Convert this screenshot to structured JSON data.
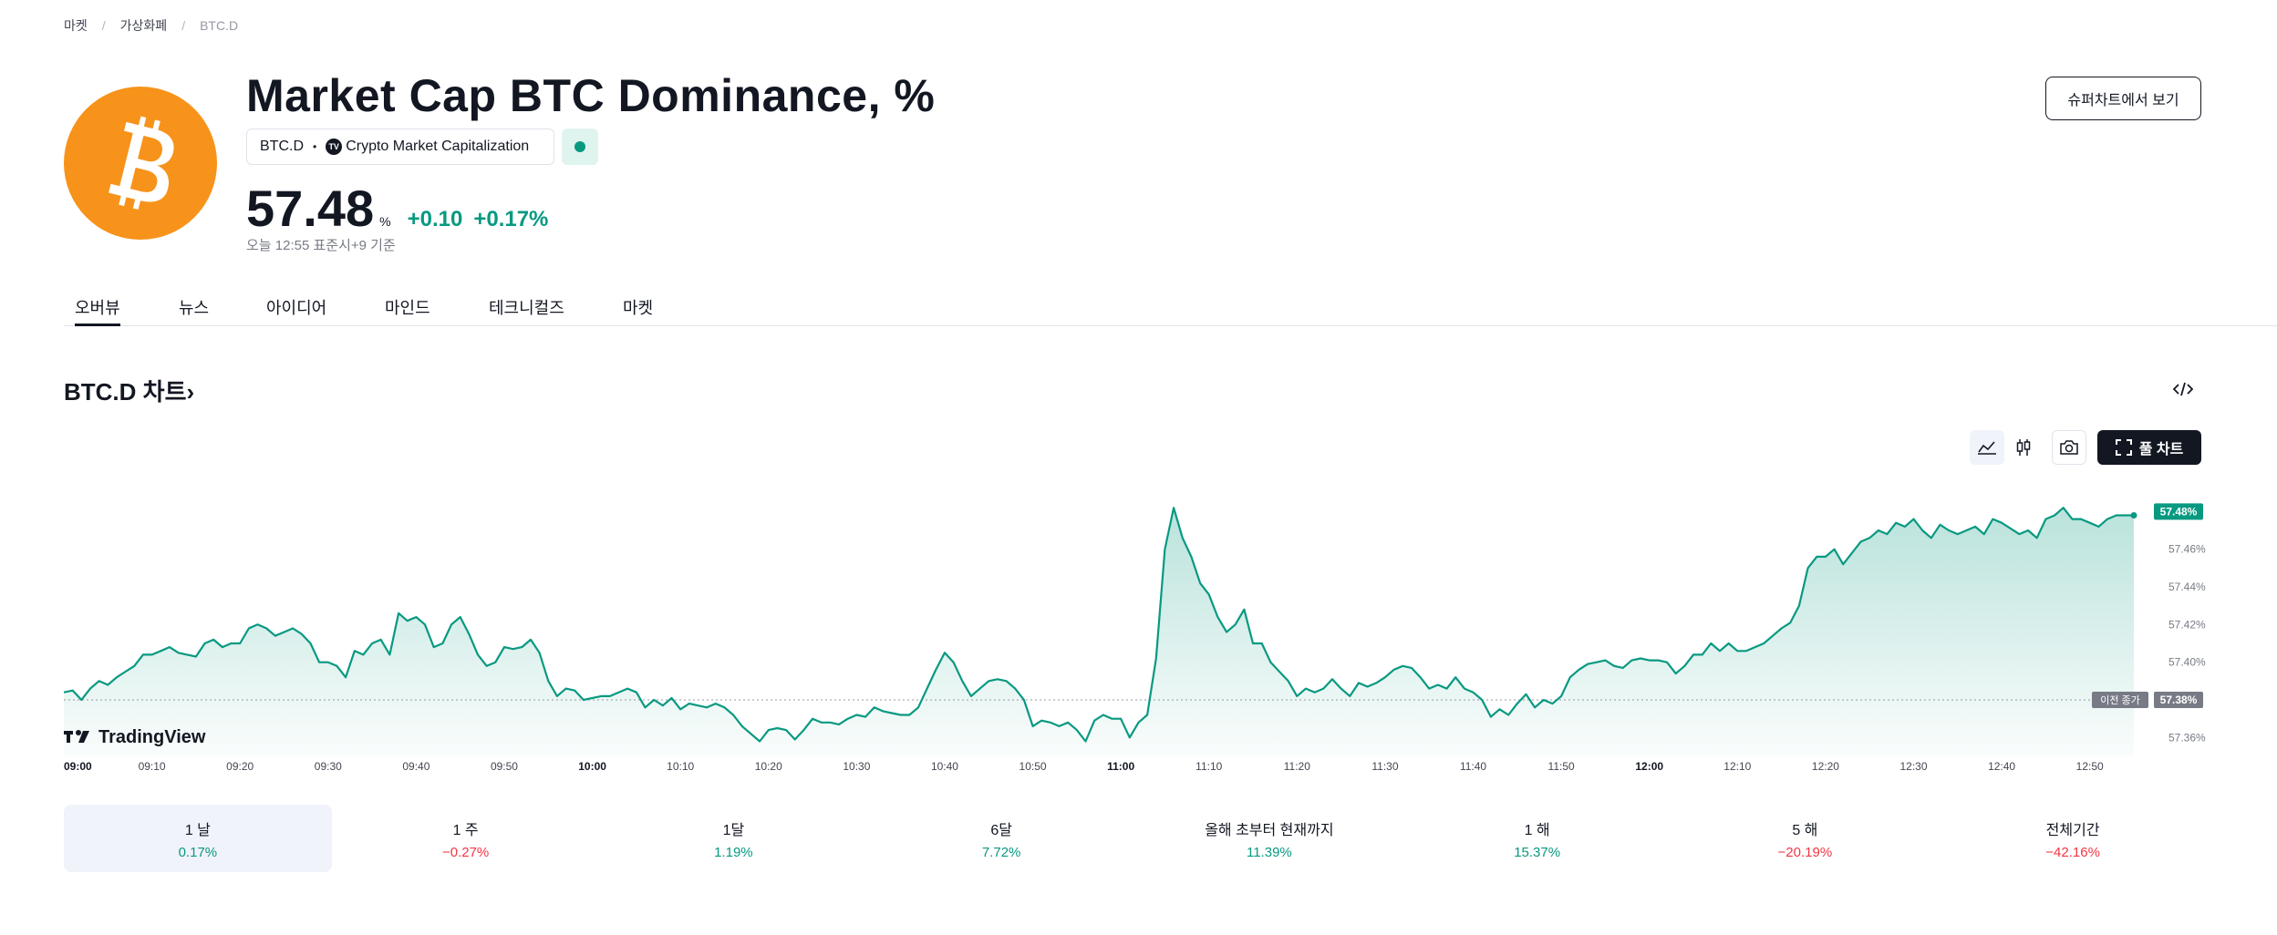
{
  "breadcrumb": {
    "items": [
      "마켓",
      "가상화폐"
    ],
    "current": "BTC.D"
  },
  "header": {
    "title": "Market Cap BTC Dominance, %",
    "symbol": "BTC.D",
    "dot": "•",
    "tv_badge": "TV",
    "source": "Crypto Market Capitalization",
    "price": "57.48",
    "unit": "%",
    "change": "+0.10",
    "change_pct": "+0.17%",
    "asof": "오늘 12:55 표준시+9 기준",
    "supercharts_label": "슈퍼차트에서 보기"
  },
  "tabs": [
    "오버뷰",
    "뉴스",
    "아이디어",
    "마인드",
    "테크니컬즈",
    "마켓"
  ],
  "section": {
    "title": "BTC.D 차트",
    "chevron": "›"
  },
  "toolbar": {
    "full_chart_label": "풀 차트"
  },
  "colors": {
    "accent": "#089981",
    "negative": "#f23645",
    "text": "#131722",
    "logo": "#f7931a"
  },
  "chart_data": {
    "type": "area",
    "x_ticks": [
      "09:00",
      "09:10",
      "09:20",
      "09:30",
      "09:40",
      "09:50",
      "10:00",
      "10:10",
      "10:20",
      "10:30",
      "10:40",
      "10:50",
      "11:00",
      "11:10",
      "11:20",
      "11:30",
      "11:40",
      "11:50",
      "12:00",
      "12:10",
      "12:20",
      "12:30",
      "12:40",
      "12:50"
    ],
    "bold_ticks": [
      "09:00",
      "10:00",
      "11:00",
      "12:00"
    ],
    "y_ticks": [
      "57.46%",
      "57.44%",
      "57.42%",
      "57.40%",
      "57.36%"
    ],
    "y_tick_values": [
      57.46,
      57.44,
      57.42,
      57.4,
      57.36
    ],
    "ylim": [
      57.35,
      57.5
    ],
    "xlim_minutes": [
      0,
      235
    ],
    "last_value": 57.48,
    "last_label": "57.48%",
    "prev_close": 57.38,
    "prev_close_label": "이전 종가",
    "prev_close_value_label": "57.38%",
    "watermark": "TradingView",
    "series": [
      {
        "name": "BTC.D",
        "points": [
          [
            0,
            57.384
          ],
          [
            1,
            57.385
          ],
          [
            2,
            57.38
          ],
          [
            3,
            57.386
          ],
          [
            4,
            57.39
          ],
          [
            5,
            57.388
          ],
          [
            6,
            57.392
          ],
          [
            7,
            57.395
          ],
          [
            8,
            57.398
          ],
          [
            9,
            57.404
          ],
          [
            10,
            57.404
          ],
          [
            11,
            57.406
          ],
          [
            12,
            57.408
          ],
          [
            13,
            57.405
          ],
          [
            14,
            57.404
          ],
          [
            15,
            57.403
          ],
          [
            16,
            57.41
          ],
          [
            17,
            57.412
          ],
          [
            18,
            57.408
          ],
          [
            19,
            57.41
          ],
          [
            20,
            57.41
          ],
          [
            21,
            57.418
          ],
          [
            22,
            57.42
          ],
          [
            23,
            57.418
          ],
          [
            24,
            57.414
          ],
          [
            25,
            57.416
          ],
          [
            26,
            57.418
          ],
          [
            27,
            57.415
          ],
          [
            28,
            57.41
          ],
          [
            29,
            57.4
          ],
          [
            30,
            57.4
          ],
          [
            31,
            57.398
          ],
          [
            32,
            57.392
          ],
          [
            33,
            57.406
          ],
          [
            34,
            57.404
          ],
          [
            35,
            57.41
          ],
          [
            36,
            57.412
          ],
          [
            37,
            57.404
          ],
          [
            38,
            57.426
          ],
          [
            39,
            57.422
          ],
          [
            40,
            57.424
          ],
          [
            41,
            57.42
          ],
          [
            42,
            57.408
          ],
          [
            43,
            57.41
          ],
          [
            44,
            57.42
          ],
          [
            45,
            57.424
          ],
          [
            46,
            57.415
          ],
          [
            47,
            57.404
          ],
          [
            48,
            57.398
          ],
          [
            49,
            57.4
          ],
          [
            50,
            57.408
          ],
          [
            51,
            57.407
          ],
          [
            52,
            57.408
          ],
          [
            53,
            57.412
          ],
          [
            54,
            57.405
          ],
          [
            55,
            57.39
          ],
          [
            56,
            57.382
          ],
          [
            57,
            57.386
          ],
          [
            58,
            57.385
          ],
          [
            59,
            57.38
          ],
          [
            60,
            57.381
          ],
          [
            61,
            57.382
          ],
          [
            62,
            57.382
          ],
          [
            63,
            57.384
          ],
          [
            64,
            57.386
          ],
          [
            65,
            57.384
          ],
          [
            66,
            57.376
          ],
          [
            67,
            57.38
          ],
          [
            68,
            57.377
          ],
          [
            69,
            57.381
          ],
          [
            70,
            57.375
          ],
          [
            71,
            57.378
          ],
          [
            72,
            57.377
          ],
          [
            73,
            57.376
          ],
          [
            74,
            57.378
          ],
          [
            75,
            57.376
          ],
          [
            76,
            57.372
          ],
          [
            77,
            57.366
          ],
          [
            78,
            57.362
          ],
          [
            79,
            57.358
          ],
          [
            80,
            57.364
          ],
          [
            81,
            57.365
          ],
          [
            82,
            57.364
          ],
          [
            83,
            57.359
          ],
          [
            84,
            57.364
          ],
          [
            85,
            57.37
          ],
          [
            86,
            57.368
          ],
          [
            87,
            57.368
          ],
          [
            88,
            57.367
          ],
          [
            89,
            57.37
          ],
          [
            90,
            57.372
          ],
          [
            91,
            57.371
          ],
          [
            92,
            57.376
          ],
          [
            93,
            57.374
          ],
          [
            94,
            57.373
          ],
          [
            95,
            57.372
          ],
          [
            96,
            57.372
          ],
          [
            97,
            57.376
          ],
          [
            98,
            57.386
          ],
          [
            99,
            57.396
          ],
          [
            100,
            57.405
          ],
          [
            101,
            57.4
          ],
          [
            102,
            57.39
          ],
          [
            103,
            57.382
          ],
          [
            104,
            57.386
          ],
          [
            105,
            57.39
          ],
          [
            106,
            57.391
          ],
          [
            107,
            57.39
          ],
          [
            108,
            57.386
          ],
          [
            109,
            57.38
          ],
          [
            110,
            57.366
          ],
          [
            111,
            57.369
          ],
          [
            112,
            57.368
          ],
          [
            113,
            57.366
          ],
          [
            114,
            57.368
          ],
          [
            115,
            57.364
          ],
          [
            116,
            57.358
          ],
          [
            117,
            57.369
          ],
          [
            118,
            57.372
          ],
          [
            119,
            57.37
          ],
          [
            120,
            57.37
          ],
          [
            121,
            57.36
          ],
          [
            122,
            57.368
          ],
          [
            123,
            57.372
          ],
          [
            124,
            57.402
          ],
          [
            125,
            57.46
          ],
          [
            126,
            57.482
          ],
          [
            127,
            57.466
          ],
          [
            128,
            57.456
          ],
          [
            129,
            57.442
          ],
          [
            130,
            57.436
          ],
          [
            131,
            57.424
          ],
          [
            132,
            57.416
          ],
          [
            133,
            57.42
          ],
          [
            134,
            57.428
          ],
          [
            135,
            57.41
          ],
          [
            136,
            57.41
          ],
          [
            137,
            57.4
          ],
          [
            138,
            57.395
          ],
          [
            139,
            57.39
          ],
          [
            140,
            57.382
          ],
          [
            141,
            57.386
          ],
          [
            142,
            57.384
          ],
          [
            143,
            57.386
          ],
          [
            144,
            57.391
          ],
          [
            145,
            57.386
          ],
          [
            146,
            57.382
          ],
          [
            147,
            57.389
          ],
          [
            148,
            57.387
          ],
          [
            149,
            57.389
          ],
          [
            150,
            57.392
          ],
          [
            151,
            57.396
          ],
          [
            152,
            57.398
          ],
          [
            153,
            57.397
          ],
          [
            154,
            57.392
          ],
          [
            155,
            57.386
          ],
          [
            156,
            57.388
          ],
          [
            157,
            57.386
          ],
          [
            158,
            57.392
          ],
          [
            159,
            57.386
          ],
          [
            160,
            57.384
          ],
          [
            161,
            57.38
          ],
          [
            162,
            57.371
          ],
          [
            163,
            57.375
          ],
          [
            164,
            57.372
          ],
          [
            165,
            57.378
          ],
          [
            166,
            57.383
          ],
          [
            167,
            57.376
          ],
          [
            168,
            57.38
          ],
          [
            169,
            57.378
          ],
          [
            170,
            57.382
          ],
          [
            171,
            57.392
          ],
          [
            172,
            57.396
          ],
          [
            173,
            57.399
          ],
          [
            174,
            57.4
          ],
          [
            175,
            57.401
          ],
          [
            176,
            57.398
          ],
          [
            177,
            57.397
          ],
          [
            178,
            57.401
          ],
          [
            179,
            57.402
          ],
          [
            180,
            57.401
          ],
          [
            181,
            57.401
          ],
          [
            182,
            57.4
          ],
          [
            183,
            57.394
          ],
          [
            184,
            57.398
          ],
          [
            185,
            57.404
          ],
          [
            186,
            57.404
          ],
          [
            187,
            57.41
          ],
          [
            188,
            57.406
          ],
          [
            189,
            57.41
          ],
          [
            190,
            57.406
          ],
          [
            191,
            57.406
          ],
          [
            192,
            57.408
          ],
          [
            193,
            57.41
          ],
          [
            194,
            57.414
          ],
          [
            195,
            57.418
          ],
          [
            196,
            57.421
          ],
          [
            197,
            57.43
          ],
          [
            198,
            57.45
          ],
          [
            199,
            57.456
          ],
          [
            200,
            57.456
          ],
          [
            201,
            57.46
          ],
          [
            202,
            57.452
          ],
          [
            203,
            57.458
          ],
          [
            204,
            57.464
          ],
          [
            205,
            57.466
          ],
          [
            206,
            57.47
          ],
          [
            207,
            57.468
          ],
          [
            208,
            57.474
          ],
          [
            209,
            57.472
          ],
          [
            210,
            57.476
          ],
          [
            211,
            57.47
          ],
          [
            212,
            57.466
          ],
          [
            213,
            57.473
          ],
          [
            214,
            57.47
          ],
          [
            215,
            57.468
          ],
          [
            216,
            57.47
          ],
          [
            217,
            57.472
          ],
          [
            218,
            57.468
          ],
          [
            219,
            57.476
          ],
          [
            220,
            57.474
          ],
          [
            221,
            57.471
          ],
          [
            222,
            57.468
          ],
          [
            223,
            57.47
          ],
          [
            224,
            57.466
          ],
          [
            225,
            57.476
          ],
          [
            226,
            57.478
          ],
          [
            227,
            57.482
          ],
          [
            228,
            57.476
          ],
          [
            229,
            57.476
          ],
          [
            230,
            57.474
          ],
          [
            231,
            57.472
          ],
          [
            232,
            57.476
          ],
          [
            233,
            57.478
          ],
          [
            234,
            57.478
          ],
          [
            235,
            57.478
          ]
        ]
      }
    ]
  },
  "periods": [
    {
      "label": "1 날",
      "value": "0.17%",
      "positive": true
    },
    {
      "label": "1 주",
      "value": "−0.27%",
      "positive": false
    },
    {
      "label": "1달",
      "value": "1.19%",
      "positive": true
    },
    {
      "label": "6달",
      "value": "7.72%",
      "positive": true
    },
    {
      "label": "올해 초부터 현재까지",
      "value": "11.39%",
      "positive": true
    },
    {
      "label": "1 해",
      "value": "15.37%",
      "positive": true
    },
    {
      "label": "5 해",
      "value": "−20.19%",
      "positive": false
    },
    {
      "label": "전체기간",
      "value": "−42.16%",
      "positive": false
    }
  ]
}
